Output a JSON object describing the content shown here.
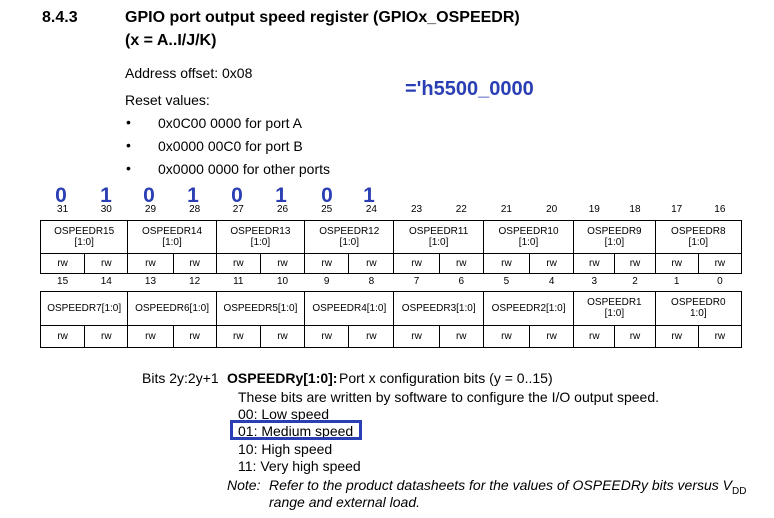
{
  "section": {
    "number": "8.4.3",
    "title_line1": "GPIO port output speed register (GPIOx_OSPEEDR)",
    "title_line2": "(x = A..I/J/K)"
  },
  "address_offset": "Address offset: 0x08",
  "reset_values_label": "Reset values:",
  "reset_values": [
    "0x0C00 0000 for port A",
    "0x0000 00C0 for port B",
    "0x0000 0000 for other ports"
  ],
  "annotation": {
    "reset_value": "='h5500_0000",
    "upper_bits": [
      "0",
      "1",
      "0",
      "1",
      "0",
      "1",
      "0",
      "1"
    ],
    "color": "#2b3fb4"
  },
  "upper": {
    "bit_numbers": [
      "31",
      "30",
      "29",
      "28",
      "27",
      "26",
      "25",
      "24",
      "23",
      "22",
      "21",
      "20",
      "19",
      "18",
      "17",
      "16"
    ],
    "fields": [
      "OSPEEDR15\n[1:0]",
      "OSPEEDR14\n[1:0]",
      "OSPEEDR13\n[1:0]",
      "OSPEEDR12\n[1:0]",
      "OSPEEDR11\n[1:0]",
      "OSPEEDR10\n[1:0]",
      "OSPEEDR9\n[1:0]",
      "OSPEEDR8\n[1:0]"
    ],
    "access": "rw"
  },
  "lower": {
    "bit_numbers": [
      "15",
      "14",
      "13",
      "12",
      "11",
      "10",
      "9",
      "8",
      "7",
      "6",
      "5",
      "4",
      "3",
      "2",
      "1",
      "0"
    ],
    "fields": [
      "OSPEEDR7[1:0]",
      "OSPEEDR6[1:0]",
      "OSPEEDR5[1:0]",
      "OSPEEDR4[1:0]",
      "OSPEEDR3[1:0]",
      "OSPEEDR2[1:0]",
      "OSPEEDR1\n[1:0]",
      "OSPEEDR0\n1:0]"
    ],
    "access": "rw"
  },
  "description": {
    "bits": "Bits 2y:2y+1",
    "field": "OSPEEDRy[1:0]:",
    "summary": "Port x configuration bits (y = 0..15)",
    "line1": "These bits are written by software to configure the I/O output speed.",
    "options": [
      "00: Low speed",
      "01: Medium speed",
      "10: High speed",
      "11: Very high speed"
    ],
    "note_label": "Note:",
    "note_line1": "Refer to the product datasheets for the values of OSPEEDRy bits versus V",
    "note_sub": "DD",
    "note_line2": "range and external load."
  }
}
